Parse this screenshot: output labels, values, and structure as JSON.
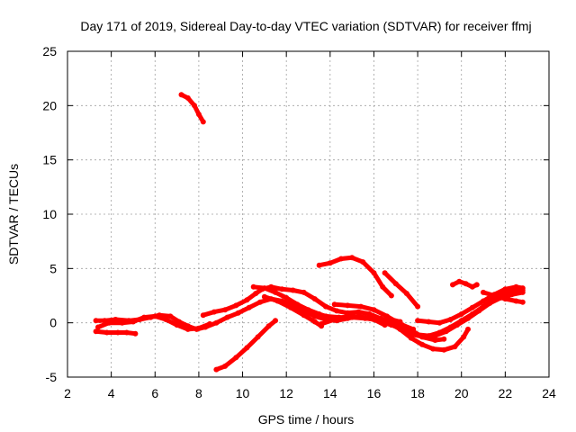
{
  "chart_data": {
    "type": "scatter",
    "title": "Day 171 of 2019, Sidereal Day-to-day VTEC variation (SDTVAR) for receiver ffmj",
    "xlabel": "GPS time / hours",
    "ylabel": "SDTVAR / TECUs",
    "xlim": [
      2,
      24
    ],
    "ylim": [
      -5,
      25
    ],
    "xticks": [
      2,
      4,
      6,
      8,
      10,
      12,
      14,
      16,
      18,
      20,
      22,
      24
    ],
    "yticks": [
      -5,
      0,
      5,
      10,
      15,
      20,
      25
    ],
    "xtick_labels": [
      "2",
      "4",
      "6",
      "8",
      "10",
      "12",
      "14",
      "16",
      "18",
      "20",
      "22",
      "24"
    ],
    "ytick_labels": [
      "-5",
      "0",
      "5",
      "10",
      "15",
      "20",
      "25"
    ],
    "grid": true,
    "legend": false,
    "color": "#ff0000",
    "series": [
      {
        "name": "trace-1",
        "points": [
          [
            3.3,
            -0.8
          ],
          [
            3.8,
            -0.9
          ],
          [
            4.3,
            -0.9
          ],
          [
            4.7,
            -0.9
          ],
          [
            5.1,
            -1.0
          ]
        ]
      },
      {
        "name": "trace-2",
        "points": [
          [
            3.3,
            0.2
          ],
          [
            3.7,
            0.2
          ],
          [
            4.2,
            0.3
          ],
          [
            4.8,
            0.2
          ],
          [
            5.3,
            0.3
          ],
          [
            5.8,
            0.5
          ],
          [
            6.2,
            0.7
          ],
          [
            6.7,
            0.6
          ],
          [
            7.1,
            0.1
          ],
          [
            7.5,
            -0.3
          ],
          [
            7.9,
            -0.6
          ],
          [
            8.3,
            -0.4
          ],
          [
            8.8,
            0.0
          ],
          [
            9.3,
            0.5
          ],
          [
            9.8,
            0.9
          ],
          [
            10.3,
            1.4
          ],
          [
            10.8,
            1.9
          ],
          [
            11.3,
            2.2
          ],
          [
            11.8,
            2.0
          ],
          [
            12.3,
            1.6
          ],
          [
            12.8,
            1.1
          ],
          [
            13.3,
            0.6
          ],
          [
            13.8,
            0.3
          ],
          [
            14.3,
            0.2
          ],
          [
            14.8,
            0.4
          ],
          [
            15.3,
            0.6
          ],
          [
            15.8,
            0.4
          ],
          [
            16.3,
            0.1
          ],
          [
            16.8,
            -0.2
          ],
          [
            17.3,
            -0.6
          ],
          [
            17.8,
            -1.1
          ],
          [
            18.3,
            -1.3
          ],
          [
            18.8,
            -1.2
          ],
          [
            19.3,
            -0.8
          ],
          [
            19.8,
            -0.2
          ],
          [
            20.3,
            0.4
          ],
          [
            20.8,
            1.1
          ],
          [
            21.3,
            1.8
          ],
          [
            21.8,
            2.3
          ],
          [
            22.3,
            2.6
          ],
          [
            22.8,
            2.8
          ]
        ]
      },
      {
        "name": "trace-3",
        "points": [
          [
            3.4,
            -0.4
          ],
          [
            3.9,
            0.0
          ],
          [
            4.5,
            0.0
          ],
          [
            5.0,
            0.1
          ],
          [
            5.5,
            0.5
          ],
          [
            6.0,
            0.6
          ],
          [
            6.5,
            0.3
          ],
          [
            7.0,
            -0.2
          ],
          [
            7.5,
            -0.6
          ],
          [
            8.0,
            -0.5
          ],
          [
            8.5,
            -0.1
          ]
        ]
      },
      {
        "name": "trace-4",
        "points": [
          [
            7.2,
            21.0
          ],
          [
            7.5,
            20.7
          ],
          [
            7.8,
            20.0
          ],
          [
            8.0,
            19.2
          ],
          [
            8.2,
            18.5
          ]
        ]
      },
      {
        "name": "trace-5",
        "points": [
          [
            8.8,
            -4.3
          ],
          [
            9.2,
            -4.0
          ],
          [
            9.7,
            -3.2
          ],
          [
            10.2,
            -2.3
          ],
          [
            10.7,
            -1.3
          ],
          [
            11.2,
            -0.3
          ],
          [
            11.5,
            0.2
          ]
        ]
      },
      {
        "name": "trace-6",
        "points": [
          [
            8.2,
            0.7
          ],
          [
            8.7,
            1.0
          ],
          [
            9.2,
            1.2
          ],
          [
            9.7,
            1.6
          ],
          [
            10.2,
            2.1
          ],
          [
            10.6,
            2.7
          ],
          [
            10.9,
            3.1
          ],
          [
            11.3,
            3.3
          ],
          [
            11.8,
            3.1
          ],
          [
            12.3,
            3.0
          ],
          [
            12.8,
            2.8
          ],
          [
            13.3,
            2.2
          ],
          [
            13.8,
            1.5
          ],
          [
            14.3,
            1.1
          ],
          [
            14.8,
            0.9
          ],
          [
            15.3,
            1.0
          ],
          [
            15.8,
            0.8
          ],
          [
            16.3,
            0.4
          ],
          [
            16.8,
            0.1
          ],
          [
            17.3,
            -0.2
          ],
          [
            17.8,
            -0.6
          ]
        ]
      },
      {
        "name": "trace-7",
        "points": [
          [
            10.5,
            3.3
          ],
          [
            11.0,
            3.2
          ],
          [
            11.5,
            2.8
          ],
          [
            12.0,
            2.3
          ],
          [
            12.5,
            1.7
          ],
          [
            13.0,
            1.2
          ],
          [
            13.5,
            0.8
          ],
          [
            13.8,
            0.6
          ]
        ]
      },
      {
        "name": "trace-8",
        "points": [
          [
            11.0,
            2.4
          ],
          [
            11.6,
            2.0
          ],
          [
            12.2,
            1.4
          ],
          [
            12.8,
            0.7
          ],
          [
            13.3,
            0.1
          ],
          [
            13.6,
            -0.3
          ]
        ]
      },
      {
        "name": "trace-9",
        "points": [
          [
            12.6,
            1.2
          ],
          [
            13.2,
            0.9
          ],
          [
            13.8,
            0.6
          ],
          [
            14.4,
            0.5
          ],
          [
            15.0,
            0.5
          ],
          [
            15.6,
            0.4
          ],
          [
            16.2,
            0.3
          ],
          [
            16.8,
            0.3
          ],
          [
            17.2,
            0.1
          ]
        ]
      },
      {
        "name": "trace-10",
        "points": [
          [
            13.6,
            -0.1
          ],
          [
            14.2,
            0.3
          ],
          [
            14.8,
            0.6
          ],
          [
            15.4,
            0.5
          ],
          [
            16.0,
            0.3
          ],
          [
            16.5,
            -0.2
          ]
        ]
      },
      {
        "name": "trace-11",
        "points": [
          [
            14.2,
            1.7
          ],
          [
            14.8,
            1.6
          ],
          [
            15.4,
            1.5
          ],
          [
            16.0,
            1.2
          ],
          [
            16.6,
            0.6
          ],
          [
            17.2,
            -0.1
          ],
          [
            17.8,
            -0.8
          ],
          [
            18.2,
            -1.3
          ],
          [
            18.8,
            -1.6
          ],
          [
            19.2,
            -1.5
          ]
        ]
      },
      {
        "name": "trace-12",
        "points": [
          [
            16.7,
            0.0
          ],
          [
            17.2,
            -0.6
          ],
          [
            17.7,
            -1.4
          ],
          [
            18.2,
            -2.0
          ],
          [
            18.7,
            -2.4
          ],
          [
            19.2,
            -2.5
          ],
          [
            19.7,
            -2.2
          ],
          [
            20.1,
            -1.3
          ],
          [
            20.3,
            -0.6
          ]
        ]
      },
      {
        "name": "trace-13",
        "points": [
          [
            17.6,
            -0.9
          ],
          [
            18.0,
            -1.1
          ],
          [
            18.5,
            -1.2
          ],
          [
            19.0,
            -0.9
          ],
          [
            19.5,
            -0.4
          ],
          [
            20.0,
            0.2
          ],
          [
            20.5,
            0.8
          ],
          [
            21.0,
            1.5
          ],
          [
            21.5,
            2.2
          ],
          [
            22.0,
            2.8
          ],
          [
            22.5,
            3.0
          ],
          [
            22.8,
            3.0
          ]
        ]
      },
      {
        "name": "trace-14",
        "points": [
          [
            18.0,
            0.2
          ],
          [
            18.5,
            0.1
          ],
          [
            19.0,
            0.0
          ],
          [
            19.5,
            0.3
          ],
          [
            20.0,
            0.8
          ],
          [
            20.5,
            1.4
          ],
          [
            21.0,
            2.0
          ],
          [
            21.5,
            2.6
          ],
          [
            22.0,
            3.1
          ],
          [
            22.5,
            3.3
          ],
          [
            22.8,
            3.2
          ]
        ]
      },
      {
        "name": "trace-15",
        "points": [
          [
            21.0,
            2.8
          ],
          [
            21.5,
            2.5
          ],
          [
            22.0,
            2.2
          ],
          [
            22.5,
            2.0
          ],
          [
            22.8,
            1.9
          ]
        ]
      },
      {
        "name": "trace-16",
        "points": [
          [
            19.6,
            3.5
          ],
          [
            19.9,
            3.8
          ],
          [
            20.2,
            3.6
          ],
          [
            20.5,
            3.3
          ],
          [
            20.7,
            3.5
          ]
        ]
      },
      {
        "name": "trace-17",
        "points": [
          [
            13.5,
            5.3
          ],
          [
            14.0,
            5.5
          ],
          [
            14.5,
            5.9
          ],
          [
            15.0,
            6.0
          ],
          [
            15.5,
            5.6
          ],
          [
            16.0,
            4.6
          ],
          [
            16.4,
            3.3
          ],
          [
            16.8,
            2.5
          ]
        ]
      },
      {
        "name": "trace-18",
        "points": [
          [
            16.5,
            4.6
          ],
          [
            17.0,
            3.6
          ],
          [
            17.5,
            2.7
          ],
          [
            18.0,
            1.5
          ]
        ]
      }
    ]
  }
}
